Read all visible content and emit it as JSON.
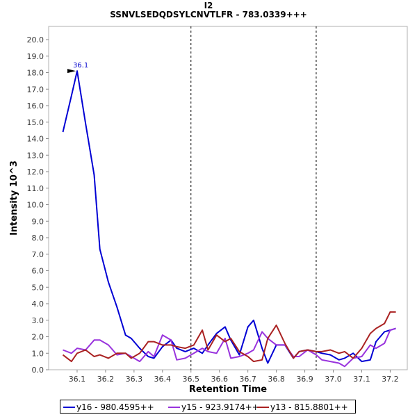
{
  "title": "I2",
  "subtitle": "SSNVLSEDQDSYLCNVTLFR - 783.0339+++",
  "chart_data": {
    "type": "line",
    "xlabel": "Retention Time",
    "ylabel": "Intensity 10^3",
    "xlim": [
      36.0,
      37.26
    ],
    "ylim": [
      0,
      20.8
    ],
    "x_ticks": [
      "36.1",
      "36.2",
      "36.3",
      "36.4",
      "36.5",
      "36.6",
      "36.7",
      "36.8",
      "36.9",
      "37.0",
      "37.1",
      "37.2"
    ],
    "y_ticks": [
      "0.0",
      "1.0",
      "2.0",
      "3.0",
      "4.0",
      "5.0",
      "6.0",
      "7.0",
      "8.0",
      "9.0",
      "10.0",
      "11.0",
      "12.0",
      "13.0",
      "14.0",
      "15.0",
      "16.0",
      "17.0",
      "18.0",
      "19.0",
      "20.0"
    ],
    "vlines": [
      36.5,
      36.94
    ],
    "peak_annotation": {
      "label": "36.1",
      "x": 36.1,
      "y": 18.1
    },
    "grid": false,
    "legend_position": "bottom",
    "series": [
      {
        "name": "y16 - 980.4595++",
        "color": "#0000d4",
        "x": [
          36.05,
          36.08,
          36.1,
          36.13,
          36.16,
          36.18,
          36.21,
          36.24,
          36.27,
          36.29,
          36.32,
          36.35,
          36.37,
          36.4,
          36.43,
          36.45,
          36.48,
          36.51,
          36.54,
          36.56,
          36.59,
          36.62,
          36.64,
          36.67,
          36.7,
          36.72,
          36.75,
          36.77,
          36.8,
          36.83,
          36.86,
          36.88,
          36.91,
          36.94,
          36.96,
          36.99,
          37.02,
          37.04,
          37.07,
          37.1,
          37.13,
          37.15,
          37.18,
          37.2,
          37.22
        ],
        "y": [
          14.4,
          16.6,
          18.1,
          14.9,
          11.8,
          7.3,
          5.3,
          3.8,
          2.1,
          1.9,
          1.3,
          0.8,
          0.7,
          1.4,
          1.8,
          1.3,
          1.1,
          1.3,
          1.0,
          1.5,
          2.2,
          2.6,
          1.8,
          0.9,
          2.6,
          3.0,
          1.3,
          0.4,
          1.5,
          1.5,
          0.7,
          1.1,
          1.2,
          1.1,
          1.0,
          0.9,
          0.6,
          0.7,
          1.0,
          0.5,
          0.6,
          1.7,
          2.3,
          2.4,
          2.5
        ]
      },
      {
        "name": "y15 - 923.9174++",
        "color": "#9933dd",
        "x": [
          36.05,
          36.08,
          36.1,
          36.13,
          36.16,
          36.18,
          36.21,
          36.24,
          36.27,
          36.29,
          36.32,
          36.35,
          36.37,
          36.4,
          36.43,
          36.45,
          36.48,
          36.51,
          36.54,
          36.56,
          36.59,
          36.62,
          36.64,
          36.67,
          36.7,
          36.72,
          36.75,
          36.77,
          36.8,
          36.83,
          36.86,
          36.88,
          36.91,
          36.94,
          36.96,
          36.99,
          37.02,
          37.04,
          37.07,
          37.1,
          37.13,
          37.15,
          37.18,
          37.2,
          37.22
        ],
        "y": [
          1.2,
          1.0,
          1.3,
          1.2,
          1.8,
          1.8,
          1.5,
          0.9,
          1.0,
          0.8,
          0.5,
          1.1,
          0.8,
          2.1,
          1.8,
          0.6,
          0.7,
          1.0,
          1.3,
          1.1,
          1.0,
          1.9,
          0.7,
          0.8,
          1.0,
          1.2,
          2.3,
          1.9,
          1.5,
          1.5,
          0.8,
          0.8,
          1.2,
          0.9,
          0.6,
          0.5,
          0.4,
          0.2,
          0.7,
          0.8,
          1.5,
          1.3,
          1.6,
          2.4,
          2.5
        ]
      },
      {
        "name": "y13 - 815.8801++",
        "color": "#aa2222",
        "x": [
          36.05,
          36.08,
          36.1,
          36.13,
          36.16,
          36.18,
          36.21,
          36.24,
          36.27,
          36.29,
          36.32,
          36.35,
          36.37,
          36.4,
          36.43,
          36.45,
          36.48,
          36.51,
          36.54,
          36.56,
          36.59,
          36.62,
          36.64,
          36.67,
          36.7,
          36.72,
          36.75,
          36.77,
          36.8,
          36.83,
          36.86,
          36.88,
          36.91,
          36.94,
          36.96,
          36.99,
          37.02,
          37.04,
          37.07,
          37.1,
          37.13,
          37.15,
          37.18,
          37.2,
          37.22
        ],
        "y": [
          0.9,
          0.5,
          1.0,
          1.2,
          0.8,
          0.9,
          0.7,
          1.0,
          1.0,
          0.7,
          1.0,
          1.7,
          1.7,
          1.5,
          1.5,
          1.4,
          1.3,
          1.5,
          2.4,
          1.2,
          2.1,
          1.7,
          1.9,
          1.1,
          0.8,
          0.5,
          0.6,
          1.9,
          2.7,
          1.6,
          0.7,
          1.1,
          1.2,
          1.1,
          1.1,
          1.2,
          1.0,
          1.1,
          0.7,
          1.3,
          2.2,
          2.5,
          2.8,
          3.5,
          3.5
        ]
      }
    ]
  }
}
